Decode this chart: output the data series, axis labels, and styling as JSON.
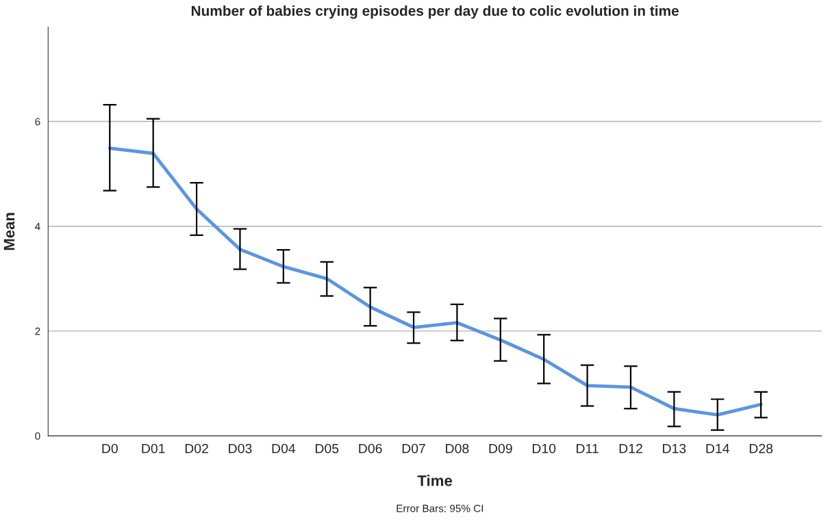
{
  "chart_data": {
    "type": "line",
    "title": "Number of babies crying episodes per day due to colic evolution in time",
    "xlabel": "Time",
    "ylabel": "Mean",
    "categories": [
      "D0",
      "D01",
      "D02",
      "D03",
      "D04",
      "D05",
      "D06",
      "D07",
      "D08",
      "D09",
      "D10",
      "D11",
      "D12",
      "D13",
      "D14",
      "D28"
    ],
    "series": [
      {
        "color": "#5b95e0",
        "values": [
          5.49,
          5.39,
          4.33,
          3.56,
          3.23,
          3.0,
          2.46,
          2.07,
          2.16,
          1.83,
          1.46,
          0.96,
          0.93,
          0.52,
          0.4,
          0.6
        ],
        "errors": [
          [
            4.68,
            6.32
          ],
          [
            4.75,
            6.05
          ],
          [
            3.83,
            4.83
          ],
          [
            3.18,
            3.95
          ],
          [
            2.92,
            3.55
          ],
          [
            2.67,
            3.32
          ],
          [
            2.1,
            2.83
          ],
          [
            1.77,
            2.36
          ],
          [
            1.82,
            2.51
          ],
          [
            1.43,
            2.24
          ],
          [
            1.0,
            1.93
          ],
          [
            0.57,
            1.35
          ],
          [
            0.52,
            1.33
          ],
          [
            0.18,
            0.84
          ],
          [
            0.11,
            0.7
          ],
          [
            0.35,
            0.84
          ]
        ]
      }
    ],
    "ylim": [
      0,
      7.8
    ],
    "yticks": [
      0,
      2,
      4,
      6
    ],
    "grid": "y",
    "marker": "none",
    "line_style": "solid",
    "annotations": [
      "Error Bars: 95% CI"
    ]
  }
}
